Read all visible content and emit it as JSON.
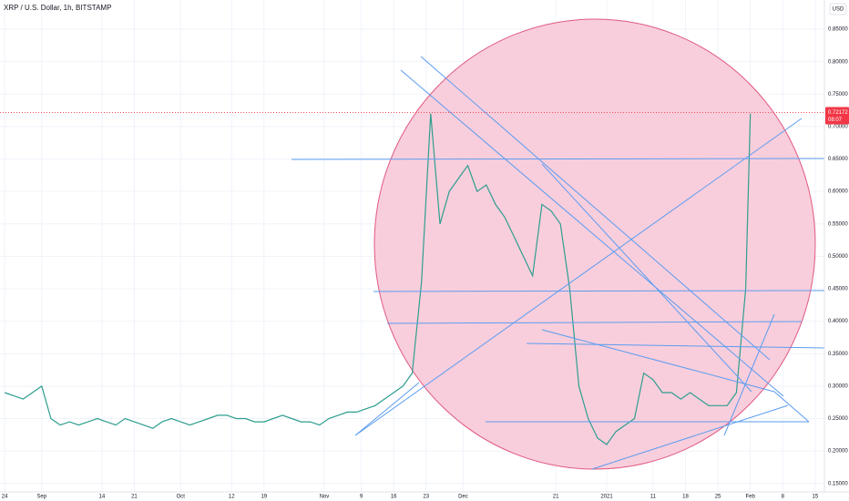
{
  "chart_data": {
    "type": "line",
    "title": "XRP / U.S. Dollar, 1h, BITSTAMP",
    "currency": "USD",
    "color": "#2e9e8f",
    "last_price": 0.72172,
    "last_price_color": "#f23645",
    "countdown": "08:07",
    "x": [
      0,
      2,
      4,
      6,
      8,
      10,
      12,
      14,
      16,
      18,
      20,
      22,
      24,
      26,
      28,
      30,
      32,
      34,
      36,
      38,
      40,
      42,
      44,
      46,
      48,
      50,
      52,
      54,
      56,
      58,
      60,
      62,
      64,
      66,
      68,
      70,
      72,
      74,
      76,
      78,
      80,
      82,
      84,
      86,
      88,
      90,
      92,
      94,
      96,
      98,
      100,
      102,
      104,
      106,
      108,
      110,
      112,
      114,
      116,
      118,
      120,
      122,
      124,
      126,
      128,
      130,
      132,
      134,
      136,
      138,
      140,
      142,
      144,
      146,
      148,
      150,
      152,
      154,
      156,
      158,
      160,
      161
    ],
    "values": [
      0.29,
      0.285,
      0.28,
      0.29,
      0.3,
      0.25,
      0.24,
      0.245,
      0.24,
      0.245,
      0.25,
      0.245,
      0.24,
      0.25,
      0.245,
      0.24,
      0.235,
      0.245,
      0.25,
      0.245,
      0.24,
      0.245,
      0.25,
      0.255,
      0.255,
      0.25,
      0.25,
      0.245,
      0.245,
      0.25,
      0.255,
      0.25,
      0.245,
      0.245,
      0.24,
      0.25,
      0.255,
      0.26,
      0.26,
      0.265,
      0.27,
      0.28,
      0.29,
      0.3,
      0.32,
      0.46,
      0.72,
      0.55,
      0.6,
      0.62,
      0.64,
      0.6,
      0.61,
      0.58,
      0.56,
      0.53,
      0.5,
      0.47,
      0.58,
      0.57,
      0.55,
      0.45,
      0.3,
      0.25,
      0.22,
      0.21,
      0.23,
      0.24,
      0.25,
      0.32,
      0.31,
      0.29,
      0.29,
      0.28,
      0.29,
      0.28,
      0.27,
      0.27,
      0.27,
      0.29,
      0.45,
      0.72
    ],
    "xlim": [
      -1,
      177
    ],
    "xticks": [
      {
        "value": 0,
        "label": "24"
      },
      {
        "value": 8,
        "label": "Sep"
      },
      {
        "value": 21,
        "label": "14"
      },
      {
        "value": 28,
        "label": "21"
      },
      {
        "value": 38,
        "label": "Oct"
      },
      {
        "value": 49,
        "label": "12"
      },
      {
        "value": 56,
        "label": "19"
      },
      {
        "value": 69,
        "label": "Nov"
      },
      {
        "value": 77,
        "label": "9"
      },
      {
        "value": 84,
        "label": "16"
      },
      {
        "value": 91,
        "label": "23"
      },
      {
        "value": 99,
        "label": "Dec"
      },
      {
        "value": 119,
        "label": "21"
      },
      {
        "value": 130,
        "label": "2021"
      },
      {
        "value": 140,
        "label": "11"
      },
      {
        "value": 147,
        "label": "18"
      },
      {
        "value": 154,
        "label": "25"
      },
      {
        "value": 161,
        "label": "Feb"
      },
      {
        "value": 168,
        "label": "8"
      },
      {
        "value": 175,
        "label": "15"
      }
    ],
    "ylim": [
      0.137,
      0.895
    ],
    "yticks": [
      {
        "value": 0.15,
        "label": "0.15000"
      },
      {
        "value": 0.2,
        "label": "0.20000"
      },
      {
        "value": 0.25,
        "label": "0.25000"
      },
      {
        "value": 0.3,
        "label": "0.30000"
      },
      {
        "value": 0.35,
        "label": "0.35000"
      },
      {
        "value": 0.4,
        "label": "0.40000"
      },
      {
        "value": 0.45,
        "label": "0.45000"
      },
      {
        "value": 0.5,
        "label": "0.50000"
      },
      {
        "value": 0.55,
        "label": "0.55000"
      },
      {
        "value": 0.6,
        "label": "0.60000"
      },
      {
        "value": 0.65,
        "label": "0.65000"
      },
      {
        "value": 0.7,
        "label": "0.70000"
      },
      {
        "value": 0.75,
        "label": "0.75000"
      },
      {
        "value": 0.8,
        "label": "0.80000"
      },
      {
        "value": 0.85,
        "label": "0.85000"
      }
    ],
    "grid": true
  }
}
